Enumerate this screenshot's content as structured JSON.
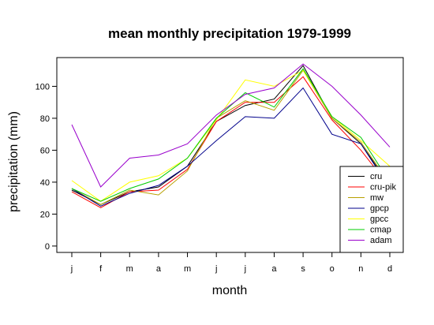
{
  "chart_data": {
    "type": "line",
    "title": "mean monthly precipitation 1979-1999",
    "xlabel": "month",
    "ylabel": "precipitation (mm)",
    "categories": [
      "j",
      "f",
      "m",
      "a",
      "m",
      "j",
      "j",
      "a",
      "s",
      "o",
      "n",
      "d"
    ],
    "yticks": [
      0,
      20,
      40,
      60,
      80,
      100
    ],
    "ylim": [
      -4,
      118
    ],
    "grid": false,
    "legend_position": "bottom-right",
    "series": [
      {
        "name": "cru",
        "color": "#000000",
        "values": [
          35,
          26,
          34,
          37,
          50,
          78,
          88,
          92,
          113,
          80,
          64,
          38
        ]
      },
      {
        "name": "cru-pik",
        "color": "#ff0000",
        "values": [
          34,
          24,
          34,
          35,
          48,
          78,
          90,
          90,
          106,
          79,
          60,
          37
        ]
      },
      {
        "name": "mw",
        "color": "#b8a000",
        "values": [
          36,
          26,
          35,
          32,
          47,
          80,
          91,
          85,
          110,
          80,
          65,
          39
        ]
      },
      {
        "name": "gpcp",
        "color": "#00008b",
        "values": [
          36,
          25,
          33,
          38,
          50,
          66,
          81,
          80,
          99,
          70,
          64,
          36
        ]
      },
      {
        "name": "gpcc",
        "color": "#ffff00",
        "values": [
          41,
          28,
          40,
          44,
          55,
          79,
          104,
          100,
          110,
          81,
          66,
          50
        ]
      },
      {
        "name": "cmap",
        "color": "#00cc00",
        "values": [
          36,
          28,
          36,
          42,
          55,
          80,
          96,
          87,
          111,
          81,
          68,
          40
        ]
      },
      {
        "name": "adam",
        "color": "#9900cc",
        "values": [
          76,
          37,
          55,
          57,
          64,
          82,
          95,
          99,
          114,
          100,
          82,
          62
        ]
      }
    ]
  }
}
